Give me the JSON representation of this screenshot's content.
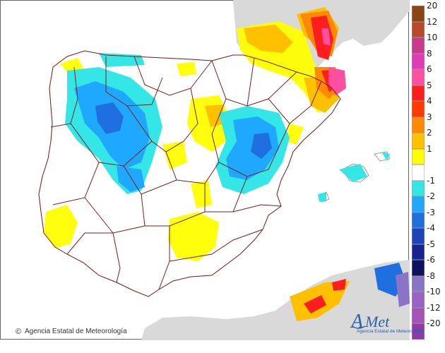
{
  "credit": {
    "symbol": "©",
    "text": "Agencia Estatal de Meteorología"
  },
  "logo": {
    "name_a": "A",
    "name_rest": "Met",
    "subtitle": "Agencia Estatal de Meteorología"
  },
  "legend": {
    "items": [
      {
        "label": "20",
        "color": "#8a4513"
      },
      {
        "label": "12",
        "color": "#b84a2a"
      },
      {
        "label": "10",
        "color": "#c83a8c"
      },
      {
        "label": "8",
        "color": "#e23ab8"
      },
      {
        "label": "6",
        "color": "#ff4fa0"
      },
      {
        "label": "5",
        "color": "#ff1e1e"
      },
      {
        "label": "4",
        "color": "#ff3a00"
      },
      {
        "label": "3",
        "color": "#ff8a00"
      },
      {
        "label": "2",
        "color": "#ffc000"
      },
      {
        "label": "1",
        "color": "#ffff00"
      },
      {
        "label": "",
        "color": "#ffffff"
      },
      {
        "label": "-1",
        "color": "#35e6e6"
      },
      {
        "label": "-2",
        "color": "#1fa8ff"
      },
      {
        "label": "-3",
        "color": "#1f6fe0"
      },
      {
        "label": "-4",
        "color": "#1c44b8"
      },
      {
        "label": "-5",
        "color": "#19238f"
      },
      {
        "label": "-6",
        "color": "#101060"
      },
      {
        "label": "-8",
        "color": "#8a74c8"
      },
      {
        "label": "-10",
        "color": "#9a62c2"
      },
      {
        "label": "-12",
        "color": "#a653b8"
      },
      {
        "label": "-20",
        "color": "#8e3aa8"
      }
    ]
  },
  "colors": {
    "sea": "#ffffff",
    "land_outside": "#d9d9d9",
    "border": "#7a1e1e",
    "positive_1": "#ffff00",
    "positive_2": "#ffc000",
    "positive_3": "#ff8a00",
    "positive_4": "#ff3a00",
    "positive_6": "#ff4fa0",
    "negative_1": "#35e6e6",
    "negative_2": "#1fa8ff",
    "negative_3": "#1f6fe0"
  }
}
